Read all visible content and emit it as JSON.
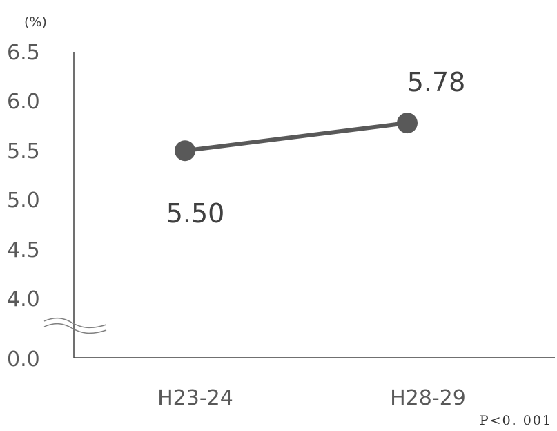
{
  "chart_data": {
    "type": "line",
    "unit_label": "(%)",
    "categories": [
      "H23-24",
      "H28-29"
    ],
    "values": [
      5.5,
      5.78
    ],
    "data_labels": [
      "5.50",
      "5.78"
    ],
    "y_ticks": [
      "6.5",
      "6.0",
      "5.5",
      "5.0",
      "4.5",
      "4.0",
      "0.0"
    ],
    "ylim": [
      4.0,
      6.5
    ],
    "axis_break": true,
    "grid": false,
    "note": "P<0. 001",
    "colors": {
      "line": "#595959",
      "marker": "#595959",
      "axis": "#404040",
      "text": "#595959"
    }
  }
}
